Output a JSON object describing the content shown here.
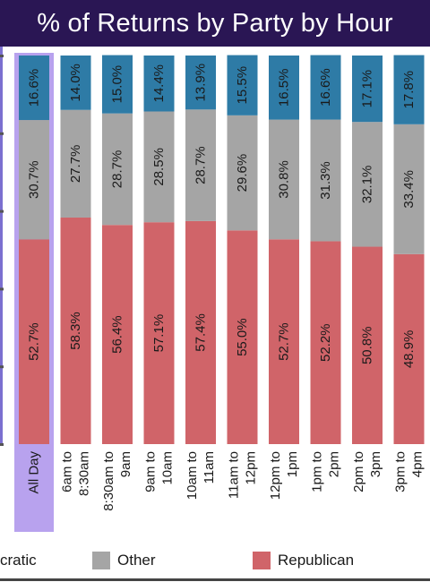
{
  "header": {
    "title": "% of Returns by Party by Hour"
  },
  "legend": {
    "democratic": "cratic",
    "other": "Other",
    "republican": "Republican"
  },
  "colors": {
    "democratic": "#2e7ba6",
    "other": "#a5a5a5",
    "republican": "#d06469",
    "highlight": "#b8a2ee",
    "title_bg": "#2a1654"
  },
  "chart_data": {
    "type": "bar",
    "stacked": true,
    "percent": true,
    "categories": [
      [
        "All Day"
      ],
      [
        "6am to",
        "8:30am"
      ],
      [
        "8:30am to",
        "9am"
      ],
      [
        "9am to",
        "10am"
      ],
      [
        "10am to",
        "11am"
      ],
      [
        "11am to",
        "12pm"
      ],
      [
        "12pm to",
        "1pm"
      ],
      [
        "1pm to",
        "2pm"
      ],
      [
        "2pm to",
        "3pm"
      ],
      [
        "3pm to",
        "4pm"
      ]
    ],
    "series": [
      {
        "name": "Republican",
        "values": [
          52.7,
          58.3,
          56.4,
          57.1,
          57.4,
          55.0,
          52.7,
          52.2,
          50.8,
          48.9
        ],
        "labels": [
          "52.7%",
          "58.3%",
          "56.4%",
          "57.1%",
          "57.4%",
          "55.0%",
          "52.7%",
          "52.2%",
          "50.8%",
          "48.9%"
        ]
      },
      {
        "name": "Other",
        "values": [
          30.7,
          27.7,
          28.7,
          28.5,
          28.7,
          29.6,
          30.8,
          31.3,
          32.1,
          33.4
        ],
        "labels": [
          "30.7%",
          "27.7%",
          "28.7%",
          "28.5%",
          "28.7%",
          "29.6%",
          "30.8%",
          "31.3%",
          "32.1%",
          "33.4%"
        ]
      },
      {
        "name": "Democratic",
        "values": [
          16.6,
          14.0,
          15.0,
          14.4,
          13.9,
          15.5,
          16.5,
          16.6,
          17.1,
          17.8
        ],
        "labels": [
          "16.6%",
          "14.0%",
          "15.0%",
          "14.4%",
          "13.9%",
          "15.5%",
          "16.5%",
          "16.6%",
          "17.1%",
          "17.8%"
        ]
      }
    ],
    "ylim": [
      0,
      100
    ],
    "grid": false,
    "legend_position": "bottom"
  }
}
